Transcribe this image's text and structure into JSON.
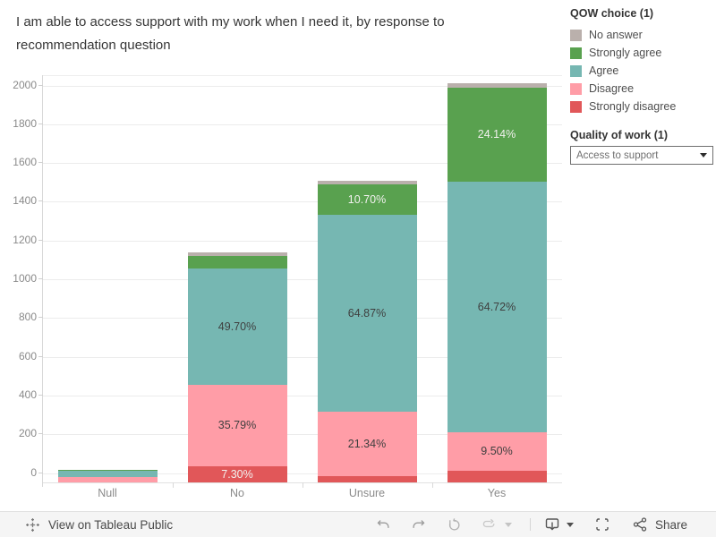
{
  "chart": {
    "title": "I am able to access support with my work when I need it, by response to recommendation question"
  },
  "legend": {
    "title": "QOW choice (1)",
    "items": [
      {
        "label": "No answer",
        "color": "#bab0ac"
      },
      {
        "label": "Strongly agree",
        "color": "#59a14f"
      },
      {
        "label": "Agree",
        "color": "#76b7b2"
      },
      {
        "label": "Disagree",
        "color": "#ff9da7"
      },
      {
        "label": "Strongly disagree",
        "color": "#e15759"
      }
    ]
  },
  "filter": {
    "title": "Quality of work (1)",
    "selected": "Access to support"
  },
  "toolbar": {
    "view_label": "View on Tableau Public",
    "share_label": "Share",
    "icons": [
      "tableau-logo",
      "undo",
      "redo",
      "replay",
      "refresh",
      "caret-down",
      "download",
      "fullscreen",
      "share"
    ]
  },
  "chart_data": {
    "type": "bar",
    "stacked": true,
    "title": "I am able to access support with my work when I need it, by response to recommendation question",
    "categories": [
      "Null",
      "No",
      "Unsure",
      "Yes"
    ],
    "series": [
      {
        "name": "Strongly disagree",
        "color": "#e15759",
        "values": [
          0,
          86,
          37,
          62
        ],
        "labels": [
          "",
          "7.30%",
          "",
          ""
        ],
        "label_style": "light"
      },
      {
        "name": "Disagree",
        "color": "#ff9da7",
        "values": [
          32,
          420,
          331,
          200
        ],
        "labels": [
          "",
          "35.79%",
          "21.34%",
          "9.50%"
        ],
        "label_style": "dark"
      },
      {
        "name": "Agree",
        "color": "#76b7b2",
        "values": [
          30,
          600,
          1016,
          1292
        ],
        "labels": [
          "",
          "49.70%",
          "64.87%",
          "64.72%"
        ],
        "label_style": "dark"
      },
      {
        "name": "Strongly agree",
        "color": "#59a14f",
        "values": [
          7,
          66,
          158,
          487
        ],
        "labels": [
          "",
          "",
          "10.70%",
          "24.14%"
        ],
        "label_style": "light"
      },
      {
        "name": "No answer",
        "color": "#bab0ac",
        "values": [
          0,
          18,
          18,
          21
        ],
        "labels": [
          "",
          "",
          "",
          ""
        ],
        "label_style": "dark"
      }
    ],
    "totals_estimated": [
      69,
      1190,
      1560,
      2062
    ],
    "y_axis": {
      "min": 0,
      "max": 2000,
      "step": 200,
      "ticks": [
        "0",
        "200",
        "400",
        "600",
        "800",
        "1000",
        "1200",
        "1400",
        "1600",
        "1800",
        "2000"
      ]
    },
    "grid": true,
    "legend_position": "right"
  }
}
